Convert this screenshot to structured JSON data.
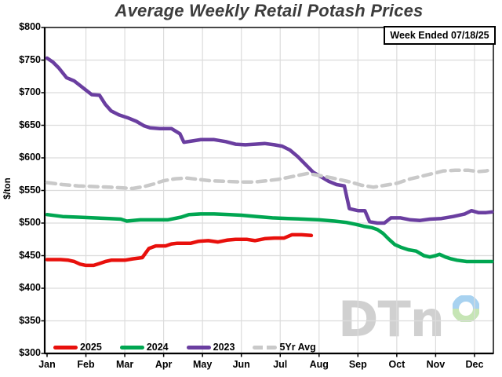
{
  "title": "Average Weekly Retail Potash Prices",
  "week_badge": "Week Ended 07/18/25",
  "yaxis_title": "$/ton",
  "watermark_text": "DTn",
  "colors": {
    "grid": "#dcdcdc",
    "frame": "#1a1a1a",
    "axis": "#000000",
    "title": "#3c3c3c",
    "watermark": "#d0d0d0",
    "ring_top": "#a8d2f0",
    "ring_bottom": "#c6e5b5"
  },
  "chart_data": {
    "type": "line",
    "title": "Average Weekly Retail Potash Prices",
    "xlabel": "",
    "ylabel": "$/ton",
    "ylim": [
      300,
      800
    ],
    "ytick_step": 50,
    "grid": true,
    "legend_position": "bottom-left inside plot",
    "x_unit": "month index, 0 = Jan, fractional values = weeks within month",
    "annotation": "Week Ended 07/18/25",
    "months": [
      "Jan",
      "Feb",
      "Mar",
      "Apr",
      "May",
      "Jun",
      "Jul",
      "Aug",
      "Sep",
      "Oct",
      "Nov",
      "Dec"
    ],
    "yticks": [
      {
        "value": 800,
        "label": "$800"
      },
      {
        "value": 750,
        "label": "$750"
      },
      {
        "value": 700,
        "label": "$700"
      },
      {
        "value": 650,
        "label": "$650"
      },
      {
        "value": 600,
        "label": "$600"
      },
      {
        "value": 550,
        "label": "$550"
      },
      {
        "value": 500,
        "label": "$500"
      },
      {
        "value": 450,
        "label": "$450"
      },
      {
        "value": 400,
        "label": "$400"
      },
      {
        "value": 350,
        "label": "$350"
      },
      {
        "value": 300,
        "label": "$300"
      }
    ],
    "series": [
      {
        "name": "2025",
        "color": "#e8100c",
        "dash": null,
        "points": [
          [
            0,
            444
          ],
          [
            0.35,
            444
          ],
          [
            0.55,
            443
          ],
          [
            0.7,
            441
          ],
          [
            0.85,
            437
          ],
          [
            1.0,
            435
          ],
          [
            1.2,
            435
          ],
          [
            1.35,
            438
          ],
          [
            1.5,
            441
          ],
          [
            1.65,
            443
          ],
          [
            2.0,
            443
          ],
          [
            2.2,
            445
          ],
          [
            2.45,
            447
          ],
          [
            2.62,
            461
          ],
          [
            2.8,
            465
          ],
          [
            3.05,
            465
          ],
          [
            3.2,
            468
          ],
          [
            3.35,
            469
          ],
          [
            3.7,
            469
          ],
          [
            3.9,
            472
          ],
          [
            4.15,
            473
          ],
          [
            4.4,
            471
          ],
          [
            4.65,
            474
          ],
          [
            4.85,
            475
          ],
          [
            5.15,
            475
          ],
          [
            5.35,
            473
          ],
          [
            5.6,
            476
          ],
          [
            5.85,
            477
          ],
          [
            6.1,
            477
          ],
          [
            6.3,
            482
          ],
          [
            6.55,
            482
          ],
          [
            6.8,
            481
          ]
        ]
      },
      {
        "name": "2024",
        "color": "#00a651",
        "dash": null,
        "points": [
          [
            0,
            513
          ],
          [
            0.4,
            510
          ],
          [
            0.8,
            509
          ],
          [
            1.2,
            508
          ],
          [
            1.6,
            507
          ],
          [
            1.9,
            506
          ],
          [
            2.05,
            503
          ],
          [
            2.4,
            505
          ],
          [
            3.1,
            505
          ],
          [
            3.45,
            509
          ],
          [
            3.65,
            513
          ],
          [
            3.95,
            514
          ],
          [
            4.3,
            514
          ],
          [
            4.7,
            513
          ],
          [
            5.0,
            512
          ],
          [
            5.4,
            510
          ],
          [
            5.8,
            508
          ],
          [
            6.2,
            507
          ],
          [
            6.6,
            506
          ],
          [
            7.0,
            505
          ],
          [
            7.4,
            503
          ],
          [
            7.7,
            501
          ],
          [
            7.95,
            498
          ],
          [
            8.15,
            495
          ],
          [
            8.35,
            493
          ],
          [
            8.5,
            490
          ],
          [
            8.65,
            484
          ],
          [
            8.8,
            475
          ],
          [
            8.95,
            467
          ],
          [
            9.1,
            463
          ],
          [
            9.3,
            459
          ],
          [
            9.5,
            457
          ],
          [
            9.7,
            450
          ],
          [
            9.85,
            448
          ],
          [
            10.0,
            450
          ],
          [
            10.1,
            452
          ],
          [
            10.25,
            448
          ],
          [
            10.4,
            445
          ],
          [
            10.55,
            443
          ],
          [
            10.8,
            441
          ],
          [
            11.1,
            441
          ],
          [
            11.45,
            441
          ]
        ]
      },
      {
        "name": "2023",
        "color": "#6a3ea0",
        "dash": null,
        "points": [
          [
            0,
            753
          ],
          [
            0.15,
            747
          ],
          [
            0.3,
            738
          ],
          [
            0.5,
            723
          ],
          [
            0.7,
            718
          ],
          [
            0.85,
            711
          ],
          [
            1.0,
            704
          ],
          [
            1.15,
            697
          ],
          [
            1.35,
            696
          ],
          [
            1.5,
            682
          ],
          [
            1.65,
            672
          ],
          [
            1.85,
            666
          ],
          [
            2.1,
            661
          ],
          [
            2.3,
            656
          ],
          [
            2.5,
            649
          ],
          [
            2.65,
            646
          ],
          [
            2.9,
            645
          ],
          [
            3.2,
            645
          ],
          [
            3.42,
            637
          ],
          [
            3.52,
            624
          ],
          [
            3.75,
            626
          ],
          [
            3.95,
            628
          ],
          [
            4.3,
            628
          ],
          [
            4.6,
            625
          ],
          [
            4.85,
            621
          ],
          [
            5.1,
            620
          ],
          [
            5.35,
            621
          ],
          [
            5.6,
            622
          ],
          [
            5.85,
            620
          ],
          [
            6.05,
            618
          ],
          [
            6.25,
            612
          ],
          [
            6.45,
            602
          ],
          [
            6.65,
            590
          ],
          [
            6.85,
            578
          ],
          [
            7.05,
            571
          ],
          [
            7.25,
            564
          ],
          [
            7.45,
            559
          ],
          [
            7.65,
            557
          ],
          [
            7.78,
            522
          ],
          [
            8.0,
            519
          ],
          [
            8.18,
            519
          ],
          [
            8.3,
            502
          ],
          [
            8.5,
            500
          ],
          [
            8.68,
            500
          ],
          [
            8.85,
            508
          ],
          [
            9.1,
            508
          ],
          [
            9.35,
            505
          ],
          [
            9.6,
            504
          ],
          [
            9.85,
            506
          ],
          [
            10.15,
            507
          ],
          [
            10.45,
            510
          ],
          [
            10.75,
            514
          ],
          [
            10.92,
            519
          ],
          [
            11.1,
            516
          ],
          [
            11.3,
            516
          ],
          [
            11.45,
            517
          ]
        ]
      },
      {
        "name": "5Yr Avg",
        "color": "#c9c9c9",
        "dash": [
          11,
          7
        ],
        "points": [
          [
            0,
            562
          ],
          [
            0.4,
            559
          ],
          [
            0.8,
            557
          ],
          [
            1.2,
            556
          ],
          [
            1.6,
            555
          ],
          [
            1.95,
            554
          ],
          [
            2.2,
            553
          ],
          [
            2.5,
            556
          ],
          [
            2.75,
            560
          ],
          [
            3.0,
            565
          ],
          [
            3.3,
            568
          ],
          [
            3.6,
            569
          ],
          [
            3.9,
            567
          ],
          [
            4.2,
            565
          ],
          [
            4.6,
            564
          ],
          [
            5.0,
            563
          ],
          [
            5.35,
            563
          ],
          [
            5.65,
            565
          ],
          [
            5.95,
            567
          ],
          [
            6.2,
            570
          ],
          [
            6.45,
            573
          ],
          [
            6.7,
            576
          ],
          [
            7.0,
            573
          ],
          [
            7.35,
            569
          ],
          [
            7.8,
            563
          ],
          [
            8.1,
            558
          ],
          [
            8.4,
            555
          ],
          [
            8.7,
            558
          ],
          [
            9.0,
            561
          ],
          [
            9.3,
            567
          ],
          [
            9.65,
            572
          ],
          [
            10.0,
            577
          ],
          [
            10.2,
            580
          ],
          [
            10.5,
            581
          ],
          [
            10.85,
            581
          ],
          [
            11.1,
            579
          ],
          [
            11.3,
            580
          ],
          [
            11.45,
            582
          ]
        ]
      }
    ]
  }
}
